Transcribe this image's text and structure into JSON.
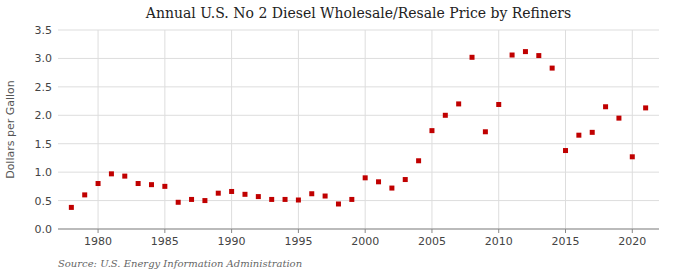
{
  "chart_data": {
    "type": "scatter",
    "title": "Annual U.S. No 2 Diesel Wholesale/Resale Price by Refiners",
    "y_label": "Dollars per Gallon",
    "annotations": [
      "Source: U.S. Energy Information Administration"
    ],
    "x": [
      1978,
      1979,
      1980,
      1981,
      1982,
      1983,
      1984,
      1985,
      1986,
      1987,
      1988,
      1989,
      1990,
      1991,
      1992,
      1993,
      1994,
      1995,
      1996,
      1997,
      1998,
      1999,
      2000,
      2001,
      2002,
      2003,
      2004,
      2005,
      2006,
      2007,
      2008,
      2009,
      2010,
      2011,
      2012,
      2013,
      2014,
      2015,
      2016,
      2017,
      2018,
      2019,
      2020,
      2021
    ],
    "values": [
      0.38,
      0.6,
      0.8,
      0.97,
      0.93,
      0.8,
      0.78,
      0.75,
      0.47,
      0.52,
      0.5,
      0.63,
      0.66,
      0.61,
      0.57,
      0.52,
      0.52,
      0.51,
      0.62,
      0.58,
      0.44,
      0.52,
      0.9,
      0.83,
      0.72,
      0.87,
      1.2,
      1.73,
      2.0,
      2.2,
      3.02,
      1.71,
      2.19,
      3.06,
      3.12,
      3.05,
      2.83,
      1.38,
      1.65,
      1.7,
      2.15,
      1.95,
      1.27,
      2.13
    ],
    "color": "#C00000",
    "marker": "square",
    "xlim": [
      1977,
      2022
    ],
    "ylim": [
      0.0,
      3.5
    ],
    "xticks": [
      1980,
      1985,
      1990,
      1995,
      2000,
      2005,
      2010,
      2015,
      2020
    ],
    "yticks": [
      {
        "value": 0.0,
        "label": "0.0"
      },
      0.5,
      {
        "value": 1.0,
        "label": "1.0"
      },
      1.5,
      {
        "value": 2.0,
        "label": "2.0"
      },
      2.5,
      {
        "value": 3.0,
        "label": "3.0"
      },
      3.5
    ],
    "grid": true
  }
}
